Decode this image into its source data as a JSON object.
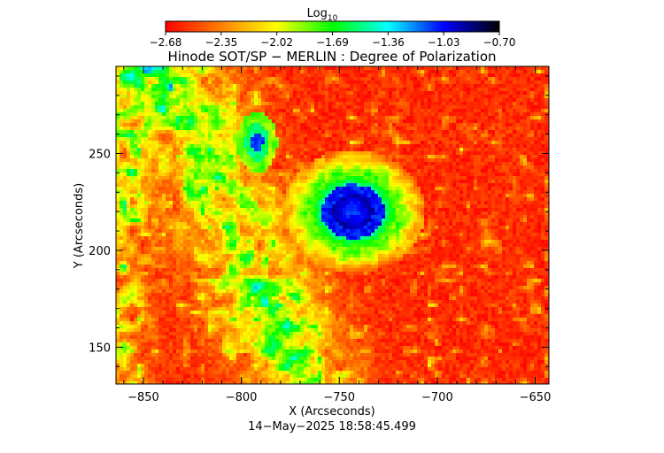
{
  "chart_data": {
    "type": "heatmap",
    "title": "Hinode SOT/SP − MERLIN : Degree of Polarization",
    "xlabel": "X (Arcseconds)",
    "ylabel": "Y (Arcseconds)",
    "timestamp": "14−May−2025 18:58:45.499",
    "xlim": [
      -864,
      -643
    ],
    "ylim": [
      131,
      295
    ],
    "x_ticks": [
      {
        "value": -850,
        "label": "−850"
      },
      {
        "value": -800,
        "label": "−800"
      },
      {
        "value": -750,
        "label": "−750"
      },
      {
        "value": -700,
        "label": "−700"
      },
      {
        "value": -650,
        "label": "−650"
      }
    ],
    "y_ticks": [
      {
        "value": 150,
        "label": "150"
      },
      {
        "value": 200,
        "label": "200"
      },
      {
        "value": 250,
        "label": "250"
      }
    ],
    "colorbar": {
      "title": "Log",
      "title_sub": "10",
      "range": [
        -2.68,
        -0.7
      ],
      "tick_labels": [
        "−2.68",
        "−2.35",
        "−2.02",
        "−1.69",
        "−1.36",
        "−1.03",
        "−0.70"
      ],
      "colors": [
        "#ff0000",
        "#ff8000",
        "#ffff00",
        "#00ff00",
        "#00ffff",
        "#0000ff",
        "#000000"
      ]
    },
    "features": [
      {
        "kind": "sunspot",
        "x": -743,
        "y": 220,
        "value": -0.9
      },
      {
        "kind": "pore",
        "x": -792,
        "y": 256,
        "value": -1.1
      }
    ]
  }
}
